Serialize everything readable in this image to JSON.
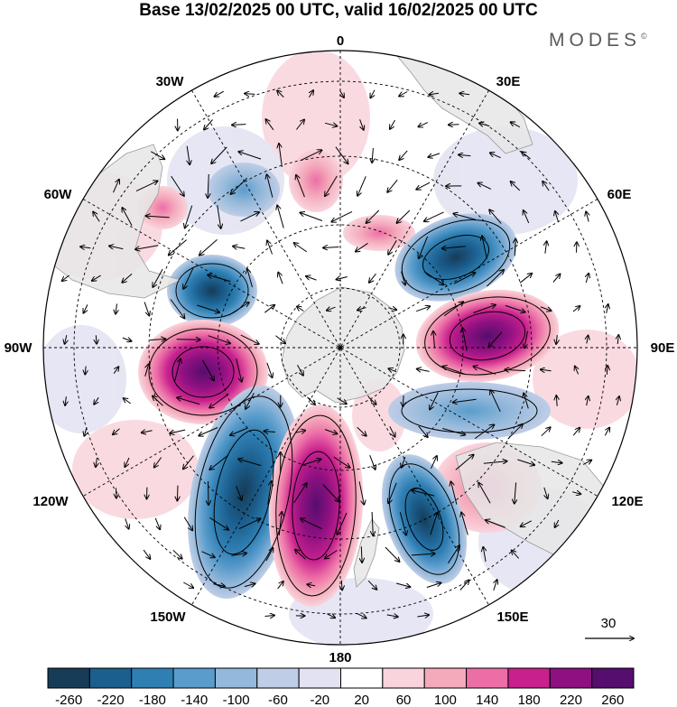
{
  "title": "Base 13/02/2025 00 UTC, valid 16/02/2025 00 UTC",
  "brand": "MODES",
  "brand_mark": "©",
  "map": {
    "projection": "south-polar-stereographic",
    "longitude_labels": {
      "top": "0",
      "top_right": "30E",
      "right_upper": "60E",
      "right": "90E",
      "right_lower": "120E",
      "bottom_right": "150E",
      "bottom": "180",
      "bottom_left": "150W",
      "left_lower": "120W",
      "left": "90W",
      "left_upper": "60W",
      "top_left": "30W"
    },
    "vector_reference": "30",
    "colors": {
      "land": "#e6e6e6",
      "coast": "#9a9a9a",
      "grid": "#000000"
    }
  },
  "colorbar": {
    "tick_labels": [
      "-260",
      "-220",
      "-180",
      "-140",
      "-100",
      "-60",
      "-20",
      "20",
      "60",
      "100",
      "140",
      "180",
      "220",
      "260"
    ],
    "colors": [
      "#163c58",
      "#1b5f8e",
      "#2f7fb3",
      "#5a9ccc",
      "#93b8da",
      "#bfcde6",
      "#e2e2f2",
      "#ffffff",
      "#f9d4dc",
      "#f4aabb",
      "#ec6ea6",
      "#c8218e",
      "#8e1081",
      "#560e6e"
    ]
  }
}
